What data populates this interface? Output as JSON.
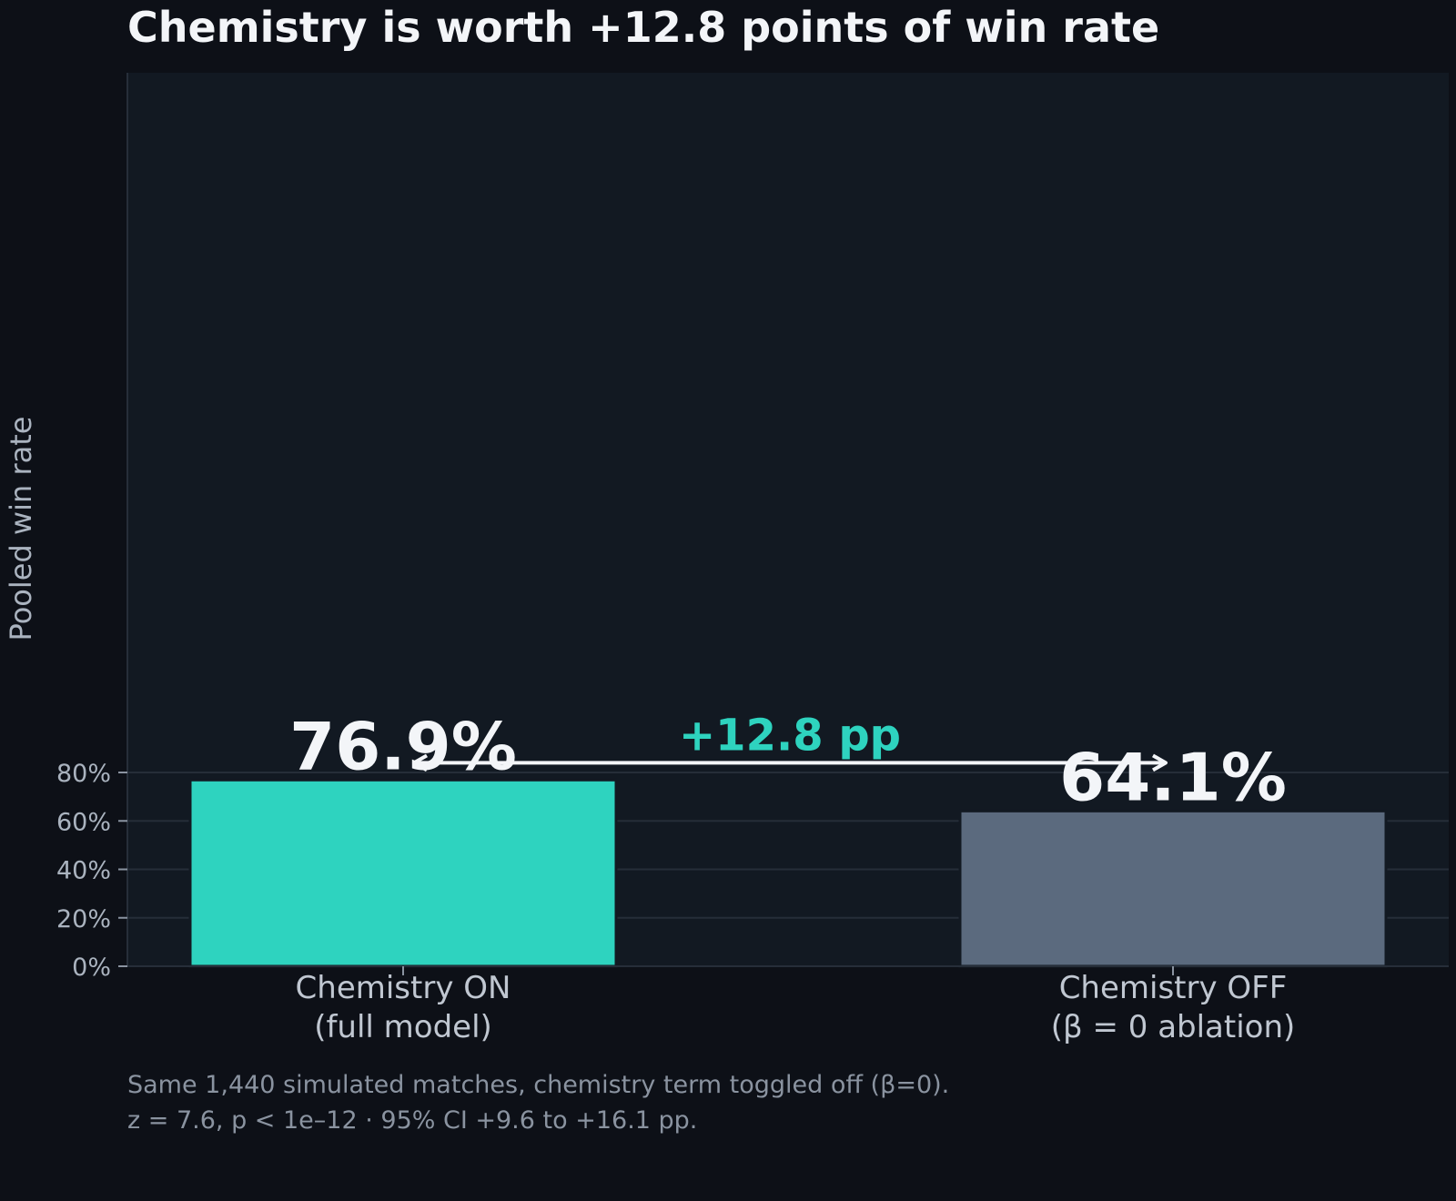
{
  "chart_data": {
    "type": "bar",
    "title": "Chemistry is worth +12.8 points of win rate",
    "ylabel": "Pooled win rate",
    "xlabel": "",
    "ylim": [
      0,
      92
    ],
    "yticks": [
      0,
      20,
      40,
      60,
      80
    ],
    "ytick_labels": [
      "0%",
      "20%",
      "40%",
      "60%",
      "80%"
    ],
    "grid": true,
    "categories": [
      [
        "Chemistry ON",
        "(full model)"
      ],
      [
        "Chemistry OFF",
        "(β = 0 ablation)"
      ]
    ],
    "values": [
      76.9,
      64.1
    ],
    "value_labels": [
      "76.9%",
      "64.1%"
    ],
    "bar_colors": [
      "#2ed3bf",
      "#5b6a7e"
    ],
    "annotation": {
      "label": "+12.8 pp",
      "value": 12.8,
      "arrow_y": 84,
      "color": "#2ed3bf"
    },
    "footnotes": [
      "Same 1,440 simulated matches, chemistry term toggled off (β=0).",
      "z = 7.6, p < 1e–12  ·  95% CI +9.6 to +16.1 pp."
    ]
  }
}
